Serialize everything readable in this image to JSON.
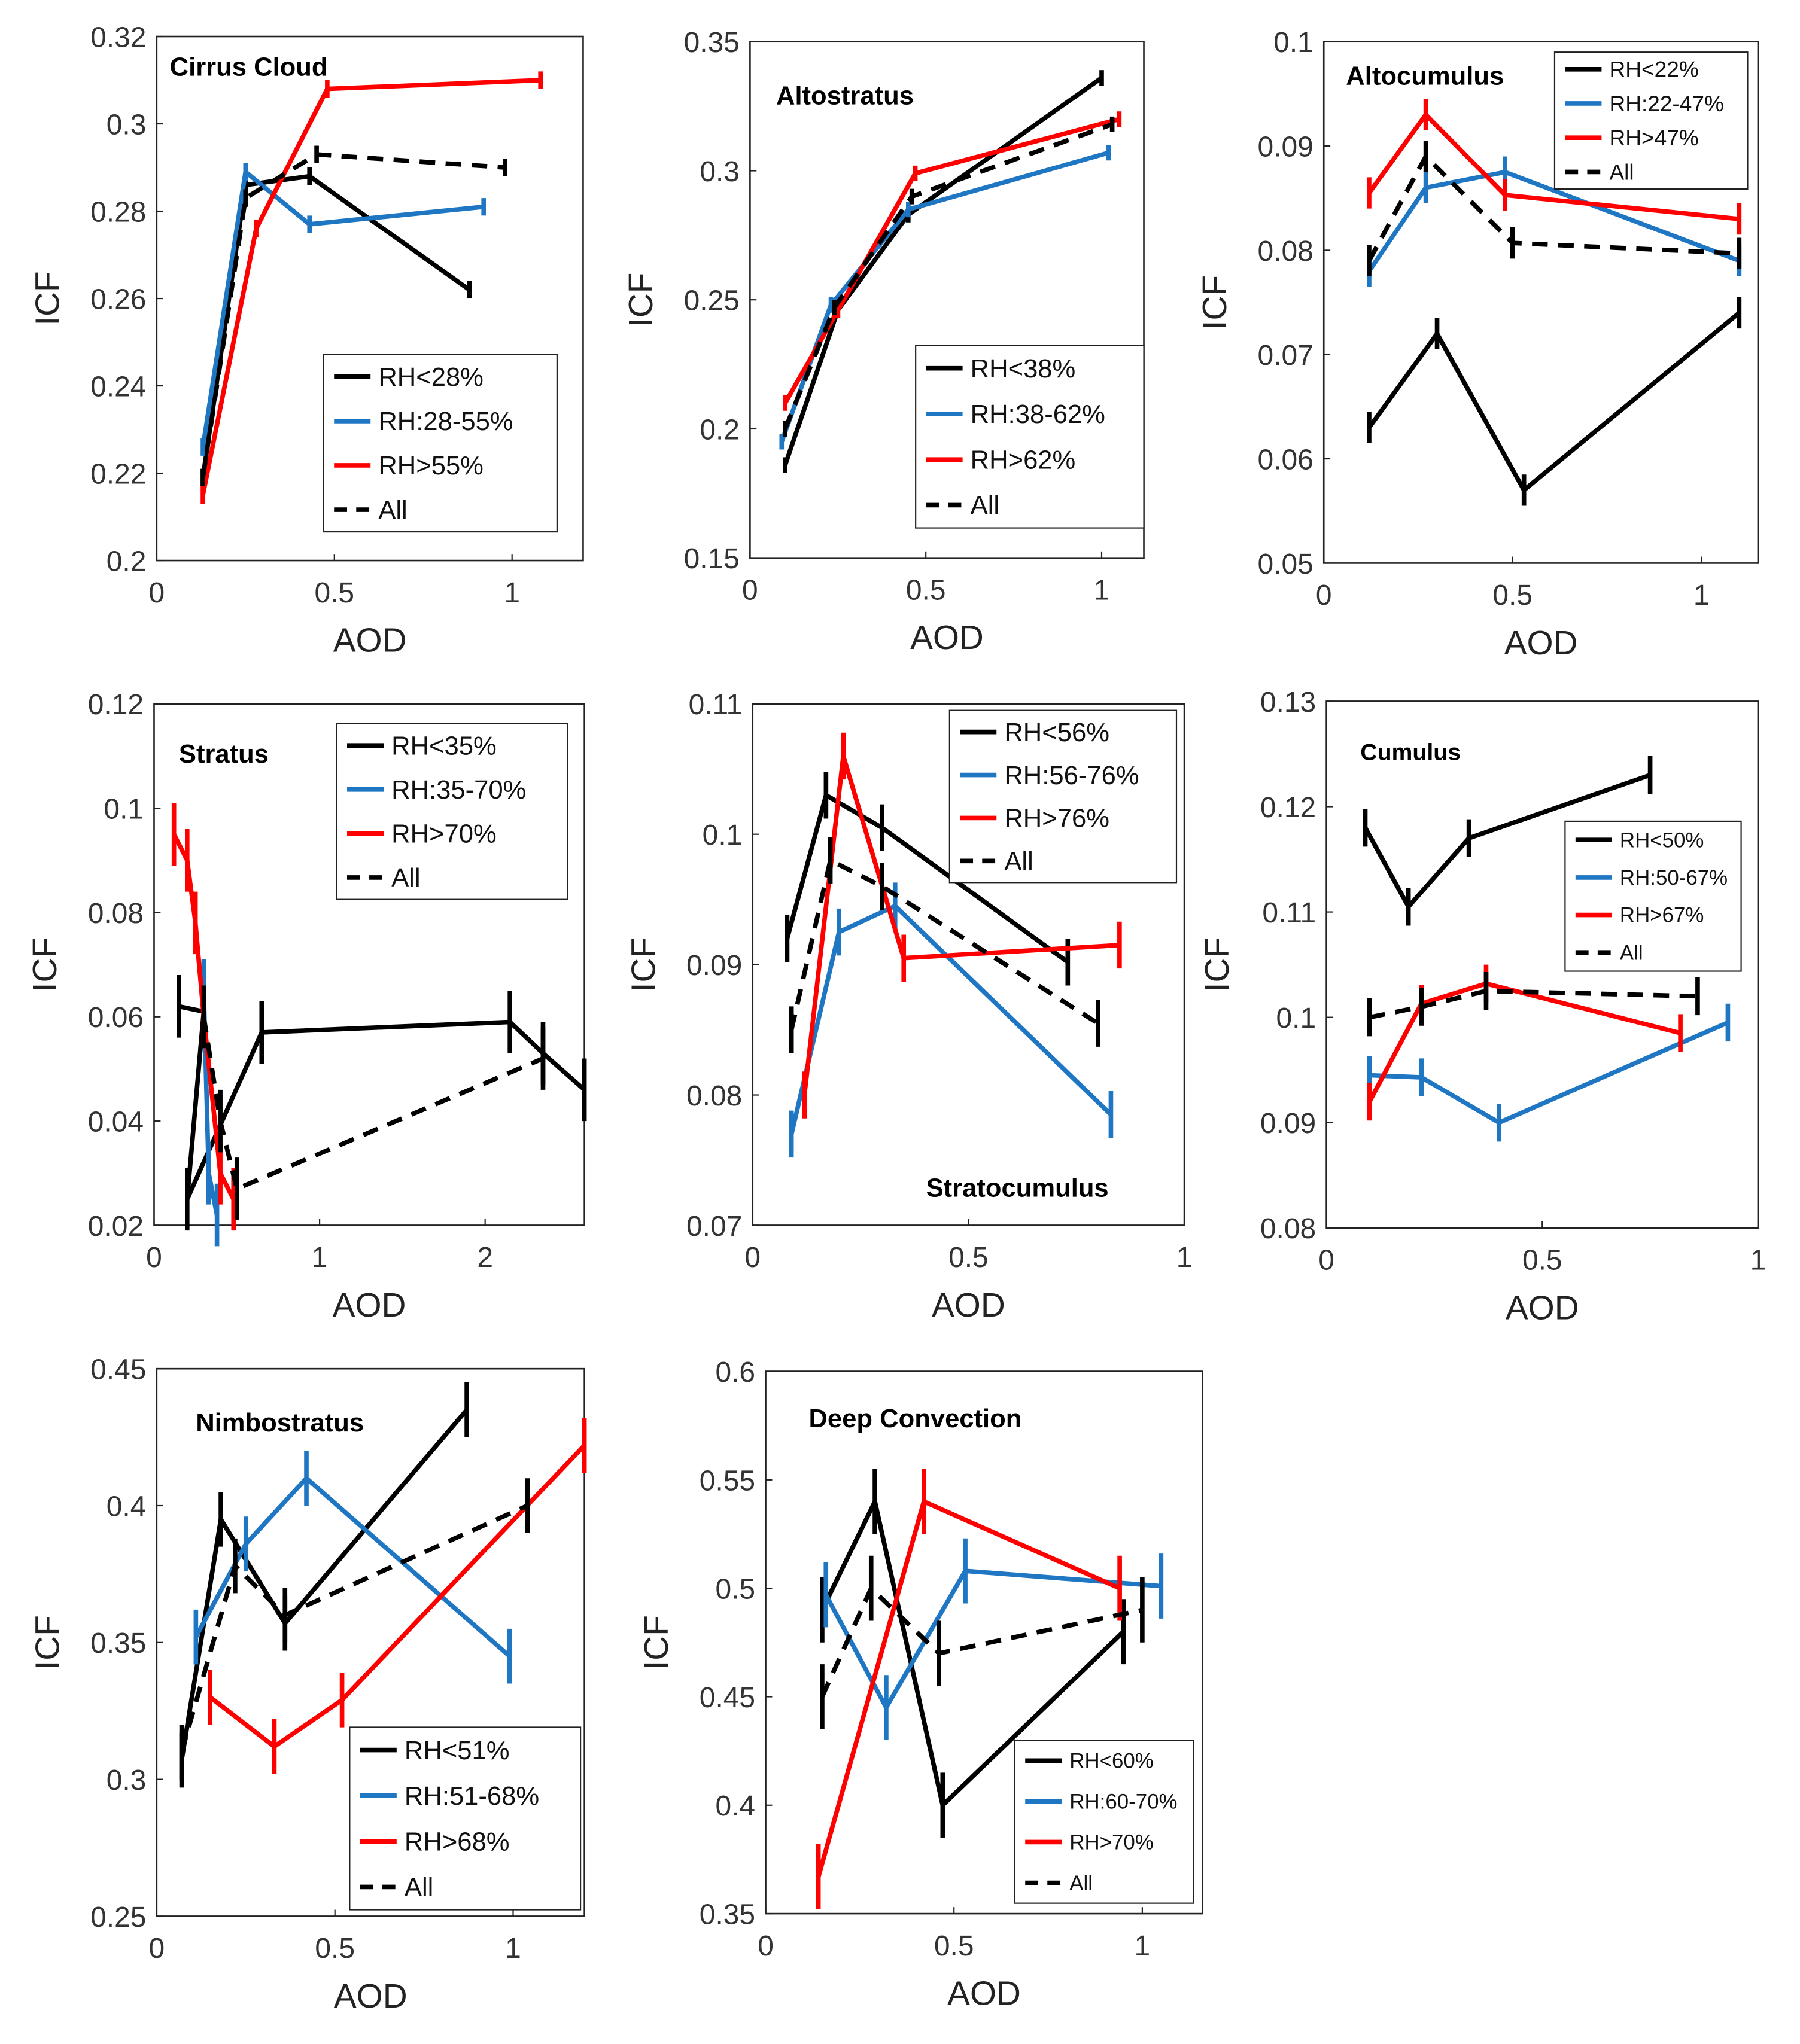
{
  "chart_data": [
    {
      "type": "line",
      "title": "Cirrus Cloud",
      "title_pos": "top-left",
      "xlabel": "AOD",
      "ylabel": "ICF",
      "xlim": [
        0,
        1.2
      ],
      "ylim": [
        0.2,
        0.32
      ],
      "xticks": [
        "0",
        "0.5",
        "1"
      ],
      "xtick_values": [
        0,
        0.5,
        1
      ],
      "yticks": [
        "0.2",
        "0.22",
        "0.24",
        "0.26",
        "0.28",
        "0.3",
        "0.32"
      ],
      "ytick_values": [
        0.2,
        0.22,
        0.24,
        0.26,
        0.28,
        0.3,
        0.32
      ],
      "legend": "bottom-right",
      "err": 0.002,
      "series": [
        {
          "name": "RH<28%",
          "color": "#000000",
          "style": "solid",
          "x": [
            0.13,
            0.25,
            0.43,
            0.88
          ],
          "y": [
            0.219,
            0.286,
            0.288,
            0.262
          ]
        },
        {
          "name": "RH:28-55%",
          "color": "#1f77c4",
          "style": "solid",
          "x": [
            0.13,
            0.25,
            0.43,
            0.92
          ],
          "y": [
            0.226,
            0.289,
            0.277,
            0.281
          ]
        },
        {
          "name": "RH>55%",
          "color": "#ff0000",
          "style": "solid",
          "x": [
            0.13,
            0.28,
            0.48,
            1.08
          ],
          "y": [
            0.215,
            0.276,
            0.308,
            0.31
          ]
        },
        {
          "name": "All",
          "color": "#000000",
          "style": "dashed",
          "x": [
            0.13,
            0.25,
            0.45,
            0.98
          ],
          "y": [
            0.219,
            0.283,
            0.293,
            0.29
          ]
        }
      ]
    },
    {
      "type": "line",
      "title": "Altostratus",
      "title_pos": "top-left",
      "xlabel": "AOD",
      "ylabel": "ICF",
      "xlim": [
        0,
        1.12
      ],
      "ylim": [
        0.15,
        0.35
      ],
      "xticks": [
        "0",
        "0.5",
        "1"
      ],
      "xtick_values": [
        0,
        0.5,
        1
      ],
      "yticks": [
        "0.15",
        "0.2",
        "0.25",
        "0.3",
        "0.35"
      ],
      "ytick_values": [
        0.15,
        0.2,
        0.25,
        0.3,
        0.35
      ],
      "legend": "bottom-right",
      "err": 0.003,
      "series": [
        {
          "name": "RH<38%",
          "color": "#000000",
          "style": "solid",
          "x": [
            0.1,
            0.25,
            0.45,
            1.0
          ],
          "y": [
            0.186,
            0.246,
            0.283,
            0.336
          ]
        },
        {
          "name": "RH:38-62%",
          "color": "#1f77c4",
          "style": "solid",
          "x": [
            0.09,
            0.23,
            0.45,
            1.02
          ],
          "y": [
            0.195,
            0.248,
            0.285,
            0.307
          ]
        },
        {
          "name": "RH>62%",
          "color": "#ff0000",
          "style": "solid",
          "x": [
            0.1,
            0.25,
            0.47,
            1.05
          ],
          "y": [
            0.21,
            0.246,
            0.299,
            0.32
          ]
        },
        {
          "name": "All",
          "color": "#000000",
          "style": "dashed",
          "x": [
            0.1,
            0.24,
            0.46,
            1.03
          ],
          "y": [
            0.2,
            0.247,
            0.29,
            0.318
          ]
        }
      ]
    },
    {
      "type": "line",
      "title": "Altocumulus",
      "title_pos": "top-left",
      "xlabel": "AOD",
      "ylabel": "ICF",
      "xlim": [
        0,
        1.15
      ],
      "ylim": [
        0.05,
        0.1
      ],
      "xticks": [
        "0",
        "0.5",
        "1"
      ],
      "xtick_values": [
        0,
        0.5,
        1
      ],
      "yticks": [
        "0.05",
        "0.06",
        "0.07",
        "0.08",
        "0.09",
        "0.1"
      ],
      "ytick_values": [
        0.05,
        0.06,
        0.07,
        0.08,
        0.09,
        0.1
      ],
      "legend": "top-right",
      "err": 0.0015,
      "series": [
        {
          "name": "RH<22%",
          "color": "#000000",
          "style": "solid",
          "x": [
            0.12,
            0.3,
            0.53,
            1.1
          ],
          "y": [
            0.063,
            0.072,
            0.057,
            0.074
          ]
        },
        {
          "name": "RH:22-47%",
          "color": "#1f77c4",
          "style": "solid",
          "x": [
            0.12,
            0.27,
            0.48,
            1.1
          ],
          "y": [
            0.078,
            0.086,
            0.0875,
            0.079
          ]
        },
        {
          "name": "RH>47%",
          "color": "#ff0000",
          "style": "solid",
          "x": [
            0.12,
            0.27,
            0.48,
            1.1
          ],
          "y": [
            0.0855,
            0.093,
            0.0853,
            0.083
          ]
        },
        {
          "name": "All",
          "color": "#000000",
          "style": "dashed",
          "x": [
            0.12,
            0.27,
            0.5,
            1.1
          ],
          "y": [
            0.079,
            0.089,
            0.0807,
            0.0797
          ]
        }
      ]
    },
    {
      "type": "line",
      "title": "Stratus",
      "title_pos": "top-left",
      "xlabel": "AOD",
      "ylabel": "ICF",
      "xlim": [
        0,
        2.6
      ],
      "ylim": [
        0.02,
        0.12
      ],
      "xticks": [
        "0",
        "1",
        "2"
      ],
      "xtick_values": [
        0,
        1,
        2
      ],
      "yticks": [
        "0.02",
        "0.04",
        "0.06",
        "0.08",
        "0.1",
        "0.12"
      ],
      "ytick_values": [
        0.02,
        0.04,
        0.06,
        0.08,
        0.1,
        0.12
      ],
      "legend": "top-right",
      "err": 0.006,
      "series": [
        {
          "name": "RH<35%",
          "color": "#000000",
          "style": "solid",
          "x": [
            0.15,
            0.3,
            0.2,
            0.65,
            2.15,
            2.35,
            2.6
          ],
          "y": [
            0.062,
            0.061,
            0.025,
            0.057,
            0.059,
            0.053,
            0.046
          ]
        },
        {
          "name": "RH:35-70%",
          "color": "#1f77c4",
          "style": "solid",
          "x": [
            0.3,
            0.33,
            0.38
          ],
          "y": [
            0.065,
            0.03,
            0.022
          ]
        },
        {
          "name": "RH>70%",
          "color": "#ff0000",
          "style": "solid",
          "x": [
            0.12,
            0.2,
            0.25,
            0.3,
            0.4,
            0.48
          ],
          "y": [
            0.095,
            0.09,
            0.078,
            0.06,
            0.03,
            0.025
          ]
        },
        {
          "name": "All",
          "color": "#000000",
          "style": "dashed",
          "x": [
            0.3,
            0.4,
            0.5,
            2.35
          ],
          "y": [
            0.06,
            0.04,
            0.027,
            0.052
          ]
        }
      ]
    },
    {
      "type": "line",
      "title": "Stratocumulus",
      "title_pos": "bottom-right",
      "xlabel": "AOD",
      "ylabel": "ICF",
      "xlim": [
        0,
        1
      ],
      "ylim": [
        0.07,
        0.11
      ],
      "xticks": [
        "0",
        "0.5",
        "1"
      ],
      "xtick_values": [
        0,
        0.5,
        1
      ],
      "yticks": [
        "0.07",
        "0.08",
        "0.09",
        "0.1",
        "0.11"
      ],
      "ytick_values": [
        0.07,
        0.08,
        0.09,
        0.1,
        0.11
      ],
      "legend": "top-right",
      "err": 0.0018,
      "series": [
        {
          "name": "RH<56%",
          "color": "#000000",
          "style": "solid",
          "x": [
            0.08,
            0.17,
            0.3,
            0.73
          ],
          "y": [
            0.092,
            0.103,
            0.1005,
            0.0902
          ]
        },
        {
          "name": "RH:56-76%",
          "color": "#1f77c4",
          "style": "solid",
          "x": [
            0.09,
            0.2,
            0.33,
            0.83
          ],
          "y": [
            0.077,
            0.0925,
            0.0945,
            0.0785
          ]
        },
        {
          "name": "RH>76%",
          "color": "#ff0000",
          "style": "solid",
          "x": [
            0.12,
            0.21,
            0.35,
            0.85
          ],
          "y": [
            0.08,
            0.106,
            0.0905,
            0.0915
          ]
        },
        {
          "name": "All",
          "color": "#000000",
          "style": "dashed",
          "x": [
            0.09,
            0.18,
            0.3,
            0.8
          ],
          "y": [
            0.085,
            0.098,
            0.096,
            0.0855
          ]
        }
      ]
    },
    {
      "type": "line",
      "title": "Cumulus",
      "title_pos": "top-left",
      "xlabel": "AOD",
      "ylabel": "ICF",
      "xlim": [
        0,
        1
      ],
      "ylim": [
        0.08,
        0.13
      ],
      "xticks": [
        "0",
        "0.5",
        "1"
      ],
      "xtick_values": [
        0,
        0.5,
        1
      ],
      "yticks": [
        "0.08",
        "0.09",
        "0.1",
        "0.11",
        "0.12",
        "0.13"
      ],
      "ytick_values": [
        0.08,
        0.09,
        0.1,
        0.11,
        0.12,
        0.13
      ],
      "legend": "right",
      "err": 0.0018,
      "series": [
        {
          "name": "RH<50%",
          "color": "#000000",
          "style": "solid",
          "x": [
            0.09,
            0.19,
            0.33,
            0.75
          ],
          "y": [
            0.118,
            0.1105,
            0.117,
            0.123
          ]
        },
        {
          "name": "RH:50-67%",
          "color": "#1f77c4",
          "style": "solid",
          "x": [
            0.1,
            0.22,
            0.4,
            0.93
          ],
          "y": [
            0.0945,
            0.0943,
            0.09,
            0.0995
          ]
        },
        {
          "name": "RH>67%",
          "color": "#ff0000",
          "style": "solid",
          "x": [
            0.1,
            0.22,
            0.37,
            0.82
          ],
          "y": [
            0.092,
            0.1013,
            0.1032,
            0.0985
          ]
        },
        {
          "name": "All",
          "color": "#000000",
          "style": "dashed",
          "x": [
            0.1,
            0.22,
            0.37,
            0.86
          ],
          "y": [
            0.1,
            0.101,
            0.1025,
            0.102
          ]
        }
      ]
    },
    {
      "type": "line",
      "title": "Nimbostratus",
      "title_pos": "top-left",
      "xlabel": "AOD",
      "ylabel": "ICF",
      "xlim": [
        0,
        1.2
      ],
      "ylim": [
        0.25,
        0.45
      ],
      "xticks": [
        "0",
        "0.5",
        "1"
      ],
      "xtick_values": [
        0,
        0.5,
        1
      ],
      "yticks": [
        "0.25",
        "0.3",
        "0.35",
        "0.4",
        "0.45"
      ],
      "ytick_values": [
        0.25,
        0.3,
        0.35,
        0.4,
        0.45
      ],
      "legend": "bottom-right",
      "err": 0.01,
      "series": [
        {
          "name": "RH<51%",
          "color": "#000000",
          "style": "solid",
          "x": [
            0.07,
            0.18,
            0.36,
            0.87
          ],
          "y": [
            0.307,
            0.395,
            0.357,
            0.435
          ]
        },
        {
          "name": "RH:51-68%",
          "color": "#1f77c4",
          "style": "solid",
          "x": [
            0.11,
            0.25,
            0.42,
            0.99
          ],
          "y": [
            0.352,
            0.386,
            0.41,
            0.345
          ]
        },
        {
          "name": "RH>68%",
          "color": "#ff0000",
          "style": "solid",
          "x": [
            0.15,
            0.33,
            0.52,
            1.2
          ],
          "y": [
            0.33,
            0.312,
            0.329,
            0.422
          ]
        },
        {
          "name": "All",
          "color": "#000000",
          "style": "dashed",
          "x": [
            0.07,
            0.22,
            0.36,
            1.04
          ],
          "y": [
            0.31,
            0.378,
            0.36,
            0.4
          ]
        }
      ]
    },
    {
      "type": "line",
      "title": "Deep Convection",
      "title_pos": "top-left",
      "xlabel": "AOD",
      "ylabel": "ICF",
      "xlim": [
        0,
        1.16
      ],
      "ylim": [
        0.35,
        0.6
      ],
      "xticks": [
        "0",
        "0.5",
        "1"
      ],
      "xtick_values": [
        0,
        0.5,
        1
      ],
      "yticks": [
        "0.35",
        "0.4",
        "0.45",
        "0.5",
        "0.55",
        "0.6"
      ],
      "ytick_values": [
        0.35,
        0.4,
        0.45,
        0.5,
        0.55,
        0.6
      ],
      "legend": "bottom-right",
      "err": 0.015,
      "series": [
        {
          "name": "RH<60%",
          "color": "#000000",
          "style": "solid",
          "x": [
            0.15,
            0.29,
            0.47,
            0.95
          ],
          "y": [
            0.49,
            0.54,
            0.4,
            0.48
          ]
        },
        {
          "name": "RH:60-70%",
          "color": "#1f77c4",
          "style": "solid",
          "x": [
            0.16,
            0.32,
            0.53,
            1.05
          ],
          "y": [
            0.497,
            0.445,
            0.508,
            0.501
          ]
        },
        {
          "name": "RH>70%",
          "color": "#ff0000",
          "style": "solid",
          "x": [
            0.14,
            0.42,
            0.94
          ],
          "y": [
            0.367,
            0.54,
            0.5
          ]
        },
        {
          "name": "All",
          "color": "#000000",
          "style": "dashed",
          "x": [
            0.15,
            0.28,
            0.46,
            1.0
          ],
          "y": [
            0.45,
            0.5,
            0.47,
            0.49
          ]
        }
      ]
    }
  ]
}
